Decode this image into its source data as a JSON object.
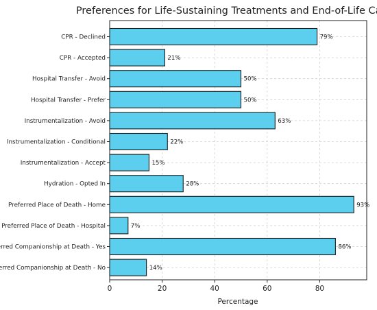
{
  "chart_data": {
    "type": "bar",
    "orientation": "horizontal",
    "title": "Preferences for Life-Sustaining Treatments and End-of-Life Care",
    "xlabel": "Percentage",
    "ylabel": "",
    "xlim": [
      0,
      96
    ],
    "xticks": [
      0,
      20,
      40,
      60,
      80
    ],
    "grid": true,
    "bar_color": "#5bcfed",
    "edge_color": "#1a1a1a",
    "categories": [
      "CPR - Declined",
      "CPR - Accepted",
      "Hospital Transfer - Avoid",
      "Hospital Transfer - Prefer",
      "Instrumentalization - Avoid",
      "Instrumentalization - Conditional",
      "Instrumentalization - Accept",
      "Hydration - Opted In",
      "Preferred Place of Death - Home",
      "Preferred Place of Death - Hospital",
      "Preferred Companionship at Death - Yes",
      "Preferred Companionship at Death - No"
    ],
    "values": [
      79,
      21,
      50,
      50,
      63,
      22,
      15,
      28,
      93,
      7,
      86,
      14
    ],
    "value_labels": [
      "79%",
      "21%",
      "50%",
      "50%",
      "63%",
      "22%",
      "15%",
      "28%",
      "93%",
      "7%",
      "86%",
      "14%"
    ]
  }
}
